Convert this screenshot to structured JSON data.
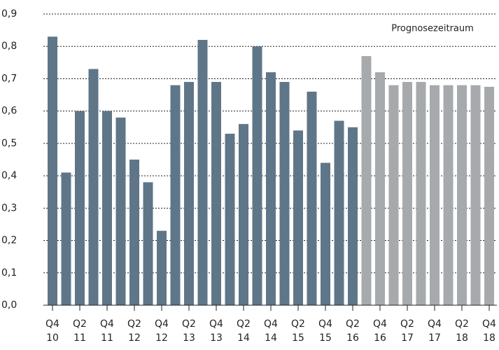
{
  "chart_data": {
    "type": "bar",
    "categories": [
      [
        "Q4",
        "10"
      ],
      null,
      [
        "Q2",
        "11"
      ],
      null,
      [
        "Q4",
        "11"
      ],
      null,
      [
        "Q2",
        "12"
      ],
      null,
      [
        "Q4",
        "12"
      ],
      null,
      [
        "Q2",
        "13"
      ],
      null,
      [
        "Q4",
        "13"
      ],
      null,
      [
        "Q2",
        "14"
      ],
      null,
      [
        "Q4",
        "14"
      ],
      null,
      [
        "Q2",
        "15"
      ],
      null,
      [
        "Q4",
        "15"
      ],
      null,
      [
        "Q2",
        "16"
      ],
      null,
      [
        "Q4",
        "16"
      ],
      null,
      [
        "Q2",
        "17"
      ],
      null,
      [
        "Q4",
        "17"
      ],
      null,
      [
        "Q2",
        "18"
      ],
      null,
      [
        "Q4",
        "18"
      ]
    ],
    "values": [
      0.83,
      0.41,
      0.6,
      0.73,
      0.6,
      0.58,
      0.45,
      0.38,
      0.23,
      0.68,
      0.69,
      0.82,
      0.69,
      0.53,
      0.56,
      0.8,
      0.72,
      0.69,
      0.54,
      0.66,
      0.44,
      0.57,
      0.55,
      0.77,
      0.72,
      0.68,
      0.69,
      0.69,
      0.68,
      0.68,
      0.68,
      0.68,
      0.675
    ],
    "colors": [
      "#5f7689",
      "#5f7689",
      "#5f7689",
      "#5f7689",
      "#5f7689",
      "#5f7689",
      "#5f7689",
      "#5f7689",
      "#5f7689",
      "#5f7689",
      "#5f7689",
      "#5f7689",
      "#5f7689",
      "#5f7689",
      "#5f7689",
      "#5f7689",
      "#5f7689",
      "#5f7689",
      "#5f7689",
      "#5f7689",
      "#5f7689",
      "#5f7689",
      "#5f7689",
      "#a7aaad",
      "#a7aaad",
      "#a7aaad",
      "#a7aaad",
      "#a7aaad",
      "#a7aaad",
      "#a7aaad",
      "#a7aaad",
      "#a7aaad",
      "#a7aaad"
    ],
    "annotation": "Prognosezeitraum",
    "ylim": [
      0,
      0.9
    ],
    "yticks": [
      {
        "value": 0,
        "label": "0,0"
      },
      {
        "value": 0.1,
        "label": "0,1"
      },
      {
        "value": 0.2,
        "label": "0,2"
      },
      {
        "value": 0.3,
        "label": "0,3"
      },
      {
        "value": 0.4,
        "label": "0,4"
      },
      {
        "value": 0.5,
        "label": "0,5"
      },
      {
        "value": 0.6,
        "label": "0,6"
      },
      {
        "value": 0.7,
        "label": "0,7"
      },
      {
        "value": 0.8,
        "label": "0,8"
      },
      {
        "value": 0.9,
        "label": "0,9"
      }
    ],
    "grid": true
  }
}
